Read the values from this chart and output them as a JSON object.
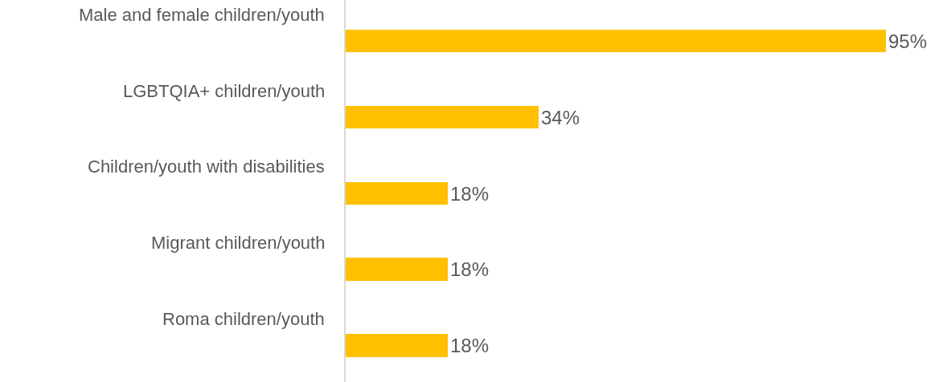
{
  "chart_data": {
    "type": "bar",
    "orientation": "horizontal",
    "categories": [
      "Male and female children/youth",
      "LGBTQIA+ children/youth",
      "Children/youth with disabilities",
      "Migrant children/youth",
      "Roma children/youth"
    ],
    "values": [
      95,
      34,
      18,
      18,
      18
    ],
    "value_labels": [
      "95%",
      "34%",
      "18%",
      "18%",
      "18%"
    ],
    "color": "#ffc000"
  }
}
